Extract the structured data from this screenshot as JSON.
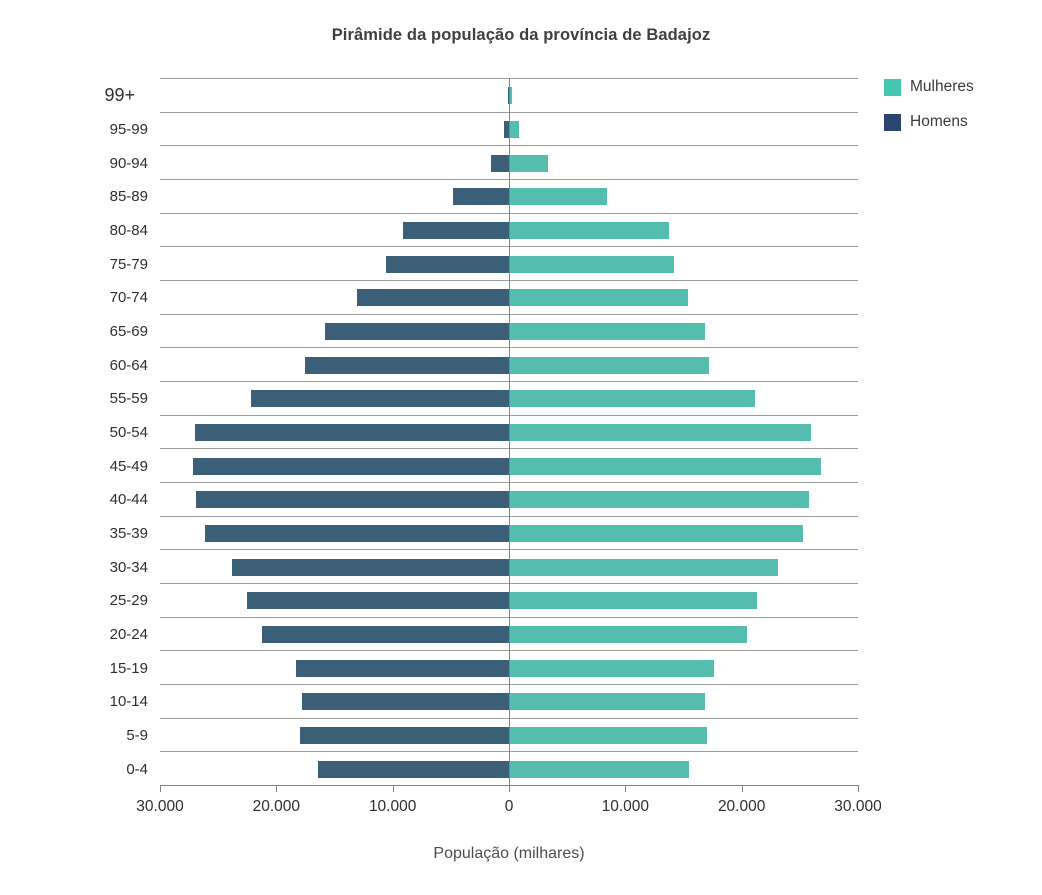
{
  "chart_data": {
    "type": "bar",
    "variant": "population-pyramid",
    "title": "Pirâmide da população da província de Badajoz",
    "xlabel": "População (milhares)",
    "x_tick_labels": [
      "30.000",
      "20.000",
      "10.000",
      "0",
      "10.000",
      "20.000",
      "30.000"
    ],
    "xlim": [
      -30000,
      30000
    ],
    "grid": "horizontal-row-separators",
    "legend_position": "top-right",
    "categories_top_to_bottom": [
      "99+",
      "95-99",
      "90-94",
      "85-89",
      "80-84",
      "75-79",
      "70-74",
      "65-69",
      "60-64",
      "55-59",
      "50-54",
      "45-49",
      "40-44",
      "35-39",
      "30-34",
      "25-29",
      "20-24",
      "15-19",
      "10-14",
      "5-9",
      "0-4"
    ],
    "series": [
      {
        "name": "Mulheres",
        "side": "right",
        "color": "#55bdad",
        "legend_color": "#46c5b1",
        "values": [
          150,
          750,
          3300,
          8300,
          13700,
          14100,
          15300,
          16800,
          17100,
          21100,
          25900,
          26700,
          25700,
          25200,
          23000,
          21200,
          20400,
          17500,
          16800,
          16900,
          15400
        ]
      },
      {
        "name": "Homens",
        "side": "left",
        "color": "#3a5f76",
        "legend_color": "#2b4571",
        "values": [
          50,
          450,
          1550,
          4800,
          9100,
          10600,
          13100,
          15800,
          17500,
          22200,
          27000,
          27200,
          26900,
          26100,
          23800,
          22500,
          21200,
          18300,
          17800,
          18000,
          16400
        ]
      }
    ]
  },
  "colors": {
    "gridline": "#9c9c9c",
    "axis": "#838383",
    "title_text": "#3f3f3f",
    "tick_text": "#2e2e2e",
    "axis_label_text": "#4d4d4d",
    "background": "#ffffff"
  }
}
